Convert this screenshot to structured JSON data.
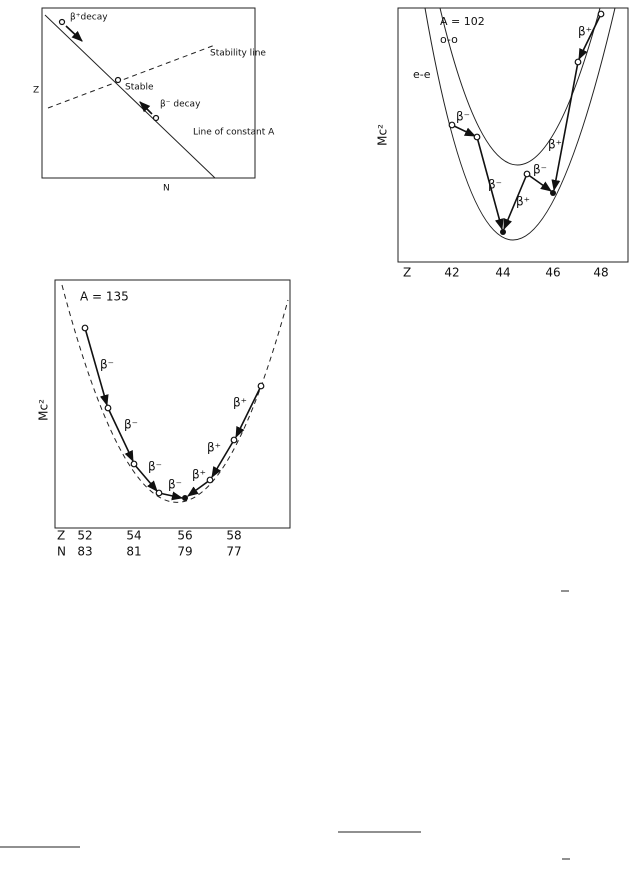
{
  "figure_decay": {
    "labels": {
      "beta_plus_decay": "β⁺decay",
      "stability_line": "Stability line",
      "z_axis": "Z",
      "stable": "Stable",
      "beta_minus_decay": "β⁻ decay",
      "constant_a": "Line of constant A",
      "n_axis": "N"
    }
  },
  "figure_a102": {
    "title": "A = 102",
    "odd_odd": "o-o",
    "even_even": "e-e",
    "y_axis": "Mc²",
    "x_axis": "Z",
    "x_ticks": [
      "42",
      "44",
      "46",
      "48"
    ],
    "arrows": [
      "β⁻",
      "β⁻",
      "β⁺",
      "β⁻",
      "β⁺",
      "β⁺"
    ]
  },
  "figure_a135": {
    "title": "A = 135",
    "y_axis": "Mc²",
    "z_label": "Z",
    "n_label": "N",
    "z_ticks": [
      "52",
      "54",
      "56",
      "58"
    ],
    "n_ticks": [
      "83",
      "81",
      "79",
      "77"
    ],
    "arrows": [
      "β⁻",
      "β⁻",
      "β⁻",
      "β⁻",
      "β⁺",
      "β⁺",
      "β⁺"
    ]
  }
}
